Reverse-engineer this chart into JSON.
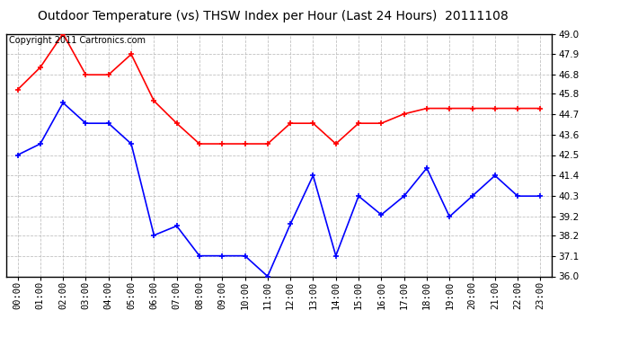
{
  "title": "Outdoor Temperature (vs) THSW Index per Hour (Last 24 Hours)  20111108",
  "copyright": "Copyright 2011 Cartronics.com",
  "hours": [
    "00:00",
    "01:00",
    "02:00",
    "03:00",
    "04:00",
    "05:00",
    "06:00",
    "07:00",
    "08:00",
    "09:00",
    "10:00",
    "11:00",
    "12:00",
    "13:00",
    "14:00",
    "15:00",
    "16:00",
    "17:00",
    "18:00",
    "19:00",
    "20:00",
    "21:00",
    "22:00",
    "23:00"
  ],
  "red_data": [
    46.0,
    47.2,
    49.0,
    46.8,
    46.8,
    47.9,
    45.4,
    44.2,
    43.1,
    43.1,
    43.1,
    43.1,
    44.2,
    44.2,
    43.1,
    44.2,
    44.2,
    44.7,
    45.0,
    45.0,
    45.0,
    45.0,
    45.0,
    45.0
  ],
  "blue_data": [
    42.5,
    43.1,
    45.3,
    44.2,
    44.2,
    43.1,
    38.2,
    38.7,
    37.1,
    37.1,
    37.1,
    36.0,
    38.8,
    41.4,
    37.1,
    40.3,
    39.3,
    40.3,
    41.8,
    39.2,
    40.3,
    41.4,
    40.3,
    40.3
  ],
  "ylim": [
    36.0,
    49.0
  ],
  "yticks": [
    36.0,
    37.1,
    38.2,
    39.2,
    40.3,
    41.4,
    42.5,
    43.6,
    44.7,
    45.8,
    46.8,
    47.9,
    49.0
  ],
  "red_color": "#ff0000",
  "blue_color": "#0000ff",
  "background_color": "#ffffff",
  "plot_bg_color": "#ffffff",
  "grid_color": "#bbbbbb",
  "title_fontsize": 10,
  "copyright_fontsize": 7,
  "tick_fontsize": 7.5
}
